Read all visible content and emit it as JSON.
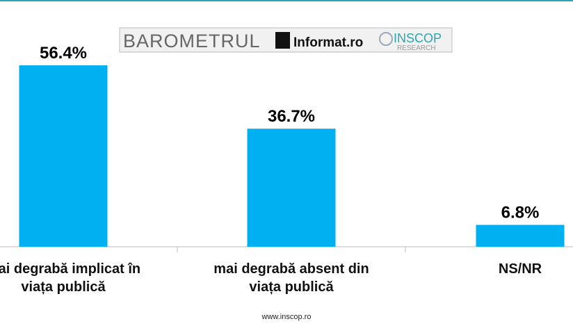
{
  "chart_data": {
    "type": "bar",
    "categories": [
      "mai degrabă implicat în viața publică",
      "mai degrabă absent din viața publică",
      "NS/NR"
    ],
    "values": [
      56.4,
      36.7,
      6.8
    ],
    "value_labels": [
      "56.4%",
      "36.7%",
      "6.8%"
    ],
    "color": "#00b0f0"
  },
  "logo": {
    "barometer": "BAROMETRUL",
    "informat": "Informat",
    "informat_domain": ".ro",
    "inscop": "INSCOP",
    "research": "RESEARCH"
  },
  "footer": "www.inscop.ro"
}
